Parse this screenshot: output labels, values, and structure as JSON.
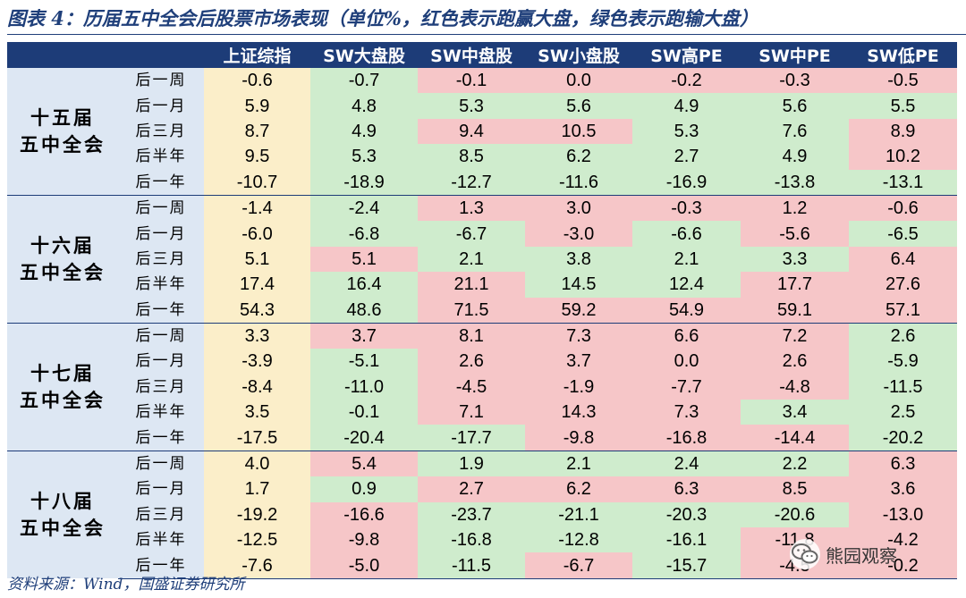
{
  "title": "图表 4：历届五中全会后股票市场表现（单位%，红色表示跑赢大盘，绿色表示跑输大盘）",
  "columns": [
    "",
    "",
    "上证综指",
    "SW大盘股",
    "SW中盘股",
    "SW小盘股",
    "SW高PE",
    "SW中PE",
    "SW低PE"
  ],
  "groups": [
    {
      "name_line1": "十五届",
      "name_line2": "五中全会",
      "rows": [
        {
          "period": "后一周",
          "values": [
            "-0.6",
            "-0.7",
            "-0.1",
            "0.0",
            "-0.2",
            "-0.3",
            "-0.5"
          ],
          "colors": [
            "idx",
            "green",
            "red",
            "red",
            "red",
            "red",
            "red"
          ]
        },
        {
          "period": "后一月",
          "values": [
            "5.9",
            "4.8",
            "5.3",
            "5.6",
            "4.9",
            "5.6",
            "5.5"
          ],
          "colors": [
            "idx",
            "green",
            "green",
            "green",
            "green",
            "green",
            "green"
          ]
        },
        {
          "period": "后三月",
          "values": [
            "8.7",
            "4.9",
            "9.4",
            "10.5",
            "5.3",
            "7.6",
            "8.9"
          ],
          "colors": [
            "idx",
            "green",
            "red",
            "red",
            "green",
            "green",
            "red"
          ]
        },
        {
          "period": "后半年",
          "values": [
            "9.5",
            "5.3",
            "8.5",
            "6.2",
            "2.7",
            "4.9",
            "10.2"
          ],
          "colors": [
            "idx",
            "green",
            "green",
            "green",
            "green",
            "green",
            "red"
          ]
        },
        {
          "period": "后一年",
          "values": [
            "-10.7",
            "-18.9",
            "-12.7",
            "-11.6",
            "-16.9",
            "-13.8",
            "-13.1"
          ],
          "colors": [
            "idx",
            "green",
            "green",
            "green",
            "green",
            "green",
            "green"
          ]
        }
      ]
    },
    {
      "name_line1": "十六届",
      "name_line2": "五中全会",
      "rows": [
        {
          "period": "后一周",
          "values": [
            "-1.4",
            "-2.4",
            "1.3",
            "3.0",
            "-0.3",
            "1.2",
            "-0.6"
          ],
          "colors": [
            "idx",
            "green",
            "red",
            "red",
            "red",
            "red",
            "red"
          ]
        },
        {
          "period": "后一月",
          "values": [
            "-6.0",
            "-6.8",
            "-6.7",
            "-3.0",
            "-6.6",
            "-5.6",
            "-6.5"
          ],
          "colors": [
            "idx",
            "green",
            "green",
            "red",
            "green",
            "red",
            "green"
          ]
        },
        {
          "period": "后三月",
          "values": [
            "5.1",
            "5.1",
            "2.1",
            "3.8",
            "2.1",
            "3.3",
            "6.4"
          ],
          "colors": [
            "idx",
            "red",
            "green",
            "green",
            "green",
            "green",
            "red"
          ]
        },
        {
          "period": "后半年",
          "values": [
            "17.4",
            "16.4",
            "21.1",
            "14.5",
            "12.4",
            "17.7",
            "27.6"
          ],
          "colors": [
            "idx",
            "green",
            "red",
            "green",
            "green",
            "red",
            "red"
          ]
        },
        {
          "period": "后一年",
          "values": [
            "54.3",
            "48.6",
            "71.5",
            "59.2",
            "54.9",
            "59.1",
            "57.1"
          ],
          "colors": [
            "idx",
            "green",
            "red",
            "red",
            "red",
            "red",
            "red"
          ]
        }
      ]
    },
    {
      "name_line1": "十七届",
      "name_line2": "五中全会",
      "rows": [
        {
          "period": "后一周",
          "values": [
            "3.3",
            "3.7",
            "8.1",
            "7.3",
            "6.6",
            "7.2",
            "2.6"
          ],
          "colors": [
            "idx",
            "red",
            "red",
            "red",
            "red",
            "red",
            "green"
          ]
        },
        {
          "period": "后一月",
          "values": [
            "-3.9",
            "-5.1",
            "2.6",
            "3.7",
            "0.0",
            "2.6",
            "-5.9"
          ],
          "colors": [
            "idx",
            "green",
            "red",
            "red",
            "red",
            "red",
            "green"
          ]
        },
        {
          "period": "后三月",
          "values": [
            "-8.4",
            "-11.0",
            "-4.5",
            "-1.9",
            "-7.7",
            "-4.8",
            "-11.5"
          ],
          "colors": [
            "idx",
            "green",
            "red",
            "red",
            "red",
            "red",
            "green"
          ]
        },
        {
          "period": "后半年",
          "values": [
            "3.5",
            "-0.1",
            "7.1",
            "14.3",
            "7.3",
            "3.4",
            "2.5"
          ],
          "colors": [
            "idx",
            "green",
            "red",
            "red",
            "red",
            "green",
            "green"
          ]
        },
        {
          "period": "后一年",
          "values": [
            "-17.5",
            "-20.4",
            "-17.7",
            "-9.8",
            "-16.8",
            "-14.4",
            "-20.2"
          ],
          "colors": [
            "idx",
            "green",
            "green",
            "red",
            "red",
            "red",
            "green"
          ]
        }
      ]
    },
    {
      "name_line1": "十八届",
      "name_line2": "五中全会",
      "rows": [
        {
          "period": "后一周",
          "values": [
            "4.0",
            "5.4",
            "1.9",
            "2.1",
            "2.4",
            "2.2",
            "6.3"
          ],
          "colors": [
            "idx",
            "red",
            "green",
            "green",
            "green",
            "green",
            "red"
          ]
        },
        {
          "period": "后一月",
          "values": [
            "1.7",
            "0.9",
            "2.7",
            "6.2",
            "6.3",
            "8.5",
            "3.6"
          ],
          "colors": [
            "idx",
            "green",
            "red",
            "red",
            "red",
            "red",
            "red"
          ]
        },
        {
          "period": "后三月",
          "values": [
            "-19.2",
            "-16.6",
            "-23.7",
            "-21.1",
            "-20.3",
            "-20.6",
            "-13.0"
          ],
          "colors": [
            "idx",
            "red",
            "green",
            "green",
            "green",
            "green",
            "red"
          ]
        },
        {
          "period": "后半年",
          "values": [
            "-12.5",
            "-9.8",
            "-16.8",
            "-12.8",
            "-16.1",
            "-11.8",
            "-4.2"
          ],
          "colors": [
            "idx",
            "red",
            "green",
            "green",
            "green",
            "red",
            "red"
          ]
        },
        {
          "period": "后一年",
          "values": [
            "-7.6",
            "-5.0",
            "-11.5",
            "-6.7",
            "-15.7",
            "-4.5",
            "-0.2"
          ],
          "colors": [
            "idx",
            "red",
            "green",
            "red",
            "green",
            "red",
            "red"
          ]
        }
      ]
    }
  ],
  "source": "资料来源：Wind，国盛证券研究所",
  "watermark": {
    "logo": "wechat-logo-icon",
    "text": "熊园观察"
  },
  "colors": {
    "header": "#1d3c78",
    "outperform_red": "#f6c6c8",
    "underperform_green": "#cfeccd",
    "index_col": "#fbeec9",
    "group_col": "#dde7f3"
  }
}
